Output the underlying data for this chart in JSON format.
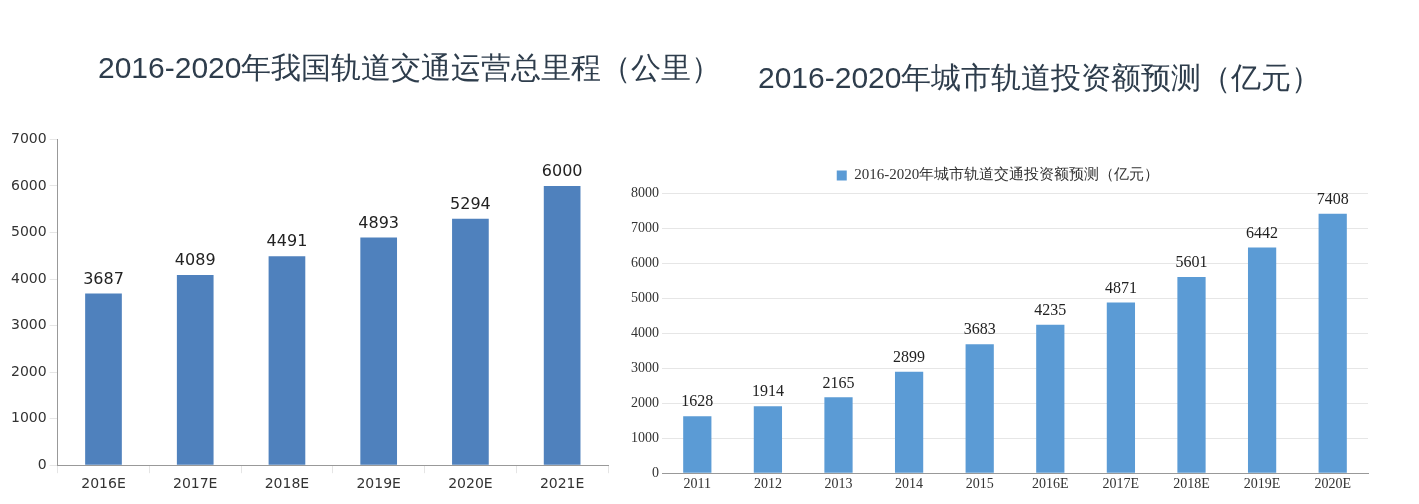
{
  "chart_data": [
    {
      "type": "bar",
      "title": "2016-2020年我国轨道交通运营总里程（公里）",
      "categories": [
        "2016E",
        "2017E",
        "2018E",
        "2019E",
        "2020E",
        "2021E"
      ],
      "series": [
        {
          "color": "#4f81bd",
          "values": [
            3687,
            4089,
            4491,
            4893,
            5294,
            6000
          ]
        }
      ],
      "ylim": [
        0,
        7000
      ],
      "yticks": [
        0,
        1000,
        2000,
        3000,
        4000,
        5000,
        6000,
        7000
      ],
      "grid": false,
      "legend": false,
      "data_labels": true
    },
    {
      "type": "bar",
      "title": "2016-2020年城市轨道投资额预测（亿元）",
      "categories": [
        "2011",
        "2012",
        "2013",
        "2014",
        "2015",
        "2016E",
        "2017E",
        "2018E",
        "2019E",
        "2020E"
      ],
      "series": [
        {
          "name": "2016-2020年城市轨道交通投资额预测（亿元）",
          "color": "#5b9bd5",
          "values": [
            1628,
            1914,
            2165,
            2899,
            3683,
            4235,
            4871,
            5601,
            6442,
            7408
          ]
        }
      ],
      "ylim": [
        0,
        8000
      ],
      "yticks": [
        0,
        1000,
        2000,
        3000,
        4000,
        5000,
        6000,
        7000,
        8000
      ],
      "grid": "y",
      "legend": "top",
      "data_labels": true
    }
  ]
}
